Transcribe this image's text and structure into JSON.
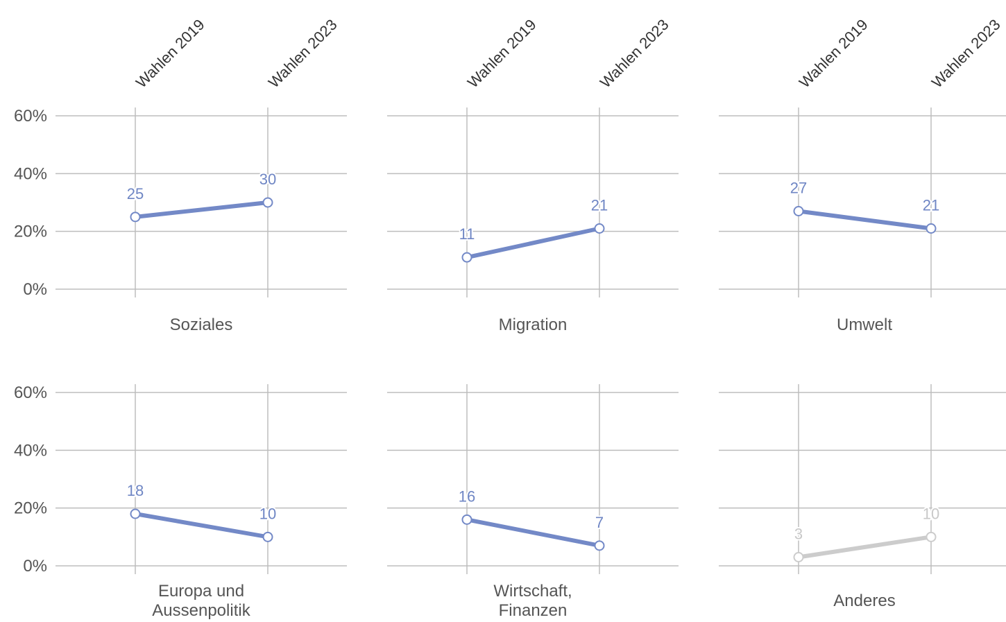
{
  "chart_data": {
    "type": "line",
    "layout": "small-multiples",
    "categories": [
      "Wahlen 2019",
      "Wahlen 2023"
    ],
    "y_ticks": [
      "60%",
      "40%",
      "20%",
      "0%"
    ],
    "ylim": [
      0,
      60
    ],
    "grid": true,
    "colors": {
      "highlight": "#7389c7",
      "muted": "#cccccc"
    },
    "panels": [
      {
        "title": "Soziales",
        "values": [
          25,
          30
        ],
        "value_labels": [
          "25",
          "30"
        ],
        "color": "#7389c7"
      },
      {
        "title": "Migration",
        "values": [
          11,
          21
        ],
        "value_labels": [
          "11",
          "21"
        ],
        "color": "#7389c7"
      },
      {
        "title": "Umwelt",
        "values": [
          27,
          21
        ],
        "value_labels": [
          "27",
          "21"
        ],
        "color": "#7389c7"
      },
      {
        "title": "Europa und Aussenpolitik",
        "title_lines": [
          "Europa und",
          "Aussenpolitik"
        ],
        "values": [
          18,
          10
        ],
        "value_labels": [
          "18",
          "10"
        ],
        "color": "#7389c7"
      },
      {
        "title": "Wirtschaft, Finanzen",
        "title_lines": [
          "Wirtschaft,",
          "Finanzen"
        ],
        "values": [
          16,
          7
        ],
        "value_labels": [
          "16",
          "7"
        ],
        "color": "#7389c7"
      },
      {
        "title": "Anderes",
        "values": [
          3,
          10
        ],
        "value_labels": [
          "3",
          "10"
        ],
        "color": "#cccccc"
      }
    ]
  }
}
